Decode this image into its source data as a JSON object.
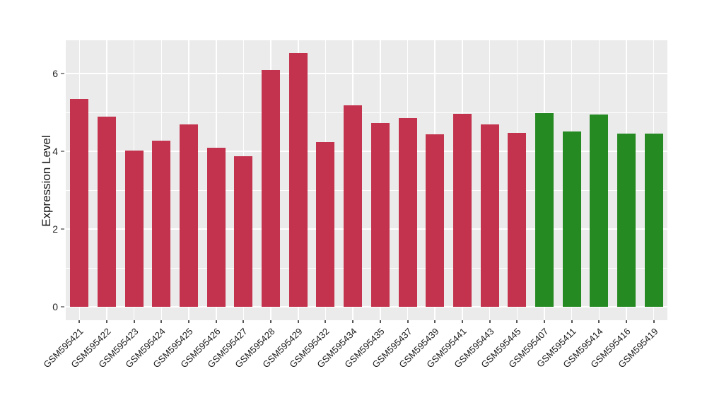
{
  "chart_data": {
    "type": "bar",
    "title": "",
    "xlabel": "",
    "ylabel": "Expression Level",
    "categories": [
      "GSM595421",
      "GSM595422",
      "GSM595423",
      "GSM595424",
      "GSM595425",
      "GSM595426",
      "GSM595427",
      "GSM595428",
      "GSM595429",
      "GSM595432",
      "GSM595434",
      "GSM595435",
      "GSM595437",
      "GSM595439",
      "GSM595441",
      "GSM595443",
      "GSM595445",
      "GSM595407",
      "GSM595411",
      "GSM595414",
      "GSM595416",
      "GSM595419"
    ],
    "values": [
      5.35,
      4.89,
      4.01,
      4.27,
      4.7,
      4.09,
      3.87,
      6.09,
      6.53,
      4.23,
      5.18,
      4.72,
      4.85,
      4.44,
      4.96,
      4.7,
      4.47,
      4.99,
      4.51,
      4.95,
      4.45,
      4.45
    ],
    "bar_groups": [
      "red",
      "red",
      "red",
      "red",
      "red",
      "red",
      "red",
      "red",
      "red",
      "red",
      "red",
      "red",
      "red",
      "red",
      "red",
      "red",
      "red",
      "green",
      "green",
      "green",
      "green",
      "green"
    ],
    "group_colors": {
      "red": "#C3334D",
      "green": "#268A23"
    },
    "y_ticks": [
      0,
      2,
      4,
      6
    ],
    "y_tick_labels": [
      "0",
      "2",
      "4",
      "6"
    ],
    "y_minor_ticks": [
      1,
      3,
      5
    ],
    "ylim": [
      -0.35,
      6.86
    ],
    "grid": true,
    "legend": false,
    "panel_bg": "#EBEBEB",
    "grid_major_color": "#FFFFFF",
    "grid_minor_color": "#FFFFFF"
  }
}
